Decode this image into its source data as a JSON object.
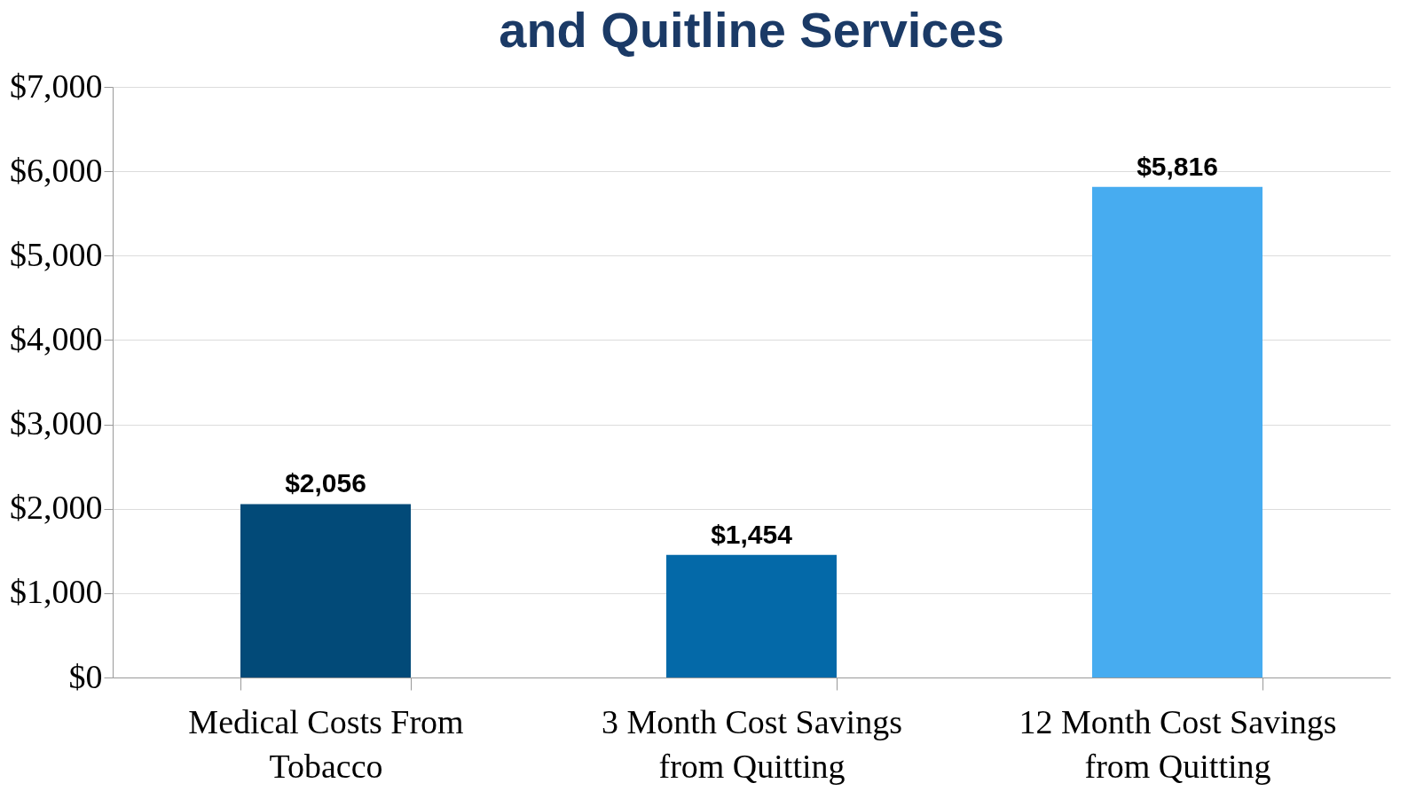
{
  "chart_data": {
    "type": "bar",
    "title": "and Quitline Services",
    "categories": [
      "Medical Costs From Tobacco",
      "3 Month Cost Savings from Quitting",
      "12 Month Cost Savings from Quitting"
    ],
    "values": [
      2056,
      1454,
      5816
    ],
    "colors": [
      "#024a78",
      "#0469a8",
      "#47acf0"
    ],
    "value_labels": [
      "$2,056",
      "$1,454",
      "$5,816"
    ],
    "ylim": [
      0,
      7000
    ],
    "yticks": [
      {
        "value": 0,
        "label": "$0"
      },
      {
        "value": 1000,
        "label": "$1,000"
      },
      {
        "value": 2000,
        "label": "$2,000"
      },
      {
        "value": 3000,
        "label": "$3,000"
      },
      {
        "value": 4000,
        "label": "$4,000"
      },
      {
        "value": 5000,
        "label": "$5,000"
      },
      {
        "value": 6000,
        "label": "$6,000"
      },
      {
        "value": 7000,
        "label": "$7,000"
      }
    ],
    "grid": "y"
  }
}
